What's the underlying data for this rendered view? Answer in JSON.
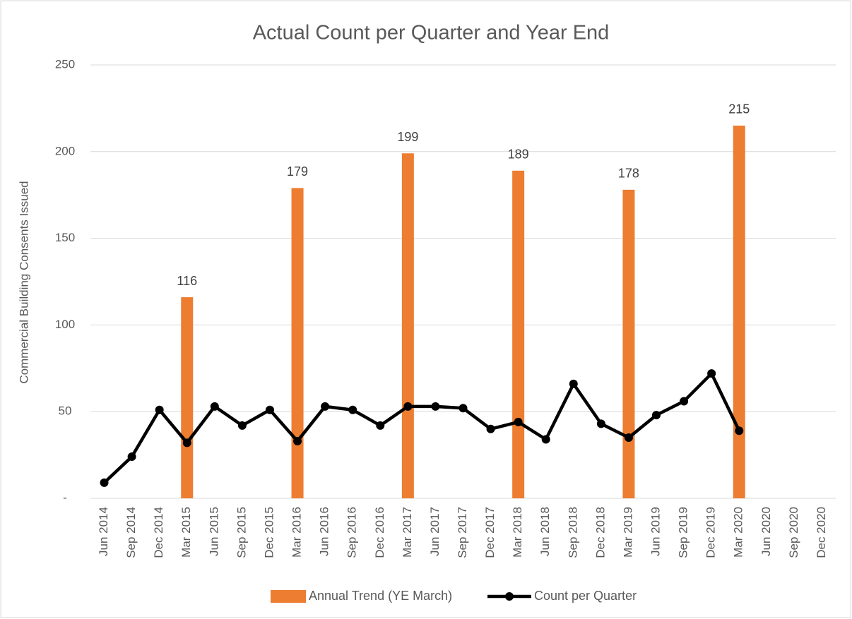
{
  "chart_data": {
    "type": "bar-line",
    "title": "Actual Count per Quarter and Year End",
    "y_label": "Commercial Building Consents Issued",
    "categories": [
      "Jun 2014",
      "Sep 2014",
      "Dec 2014",
      "Mar 2015",
      "Jun 2015",
      "Sep 2015",
      "Dec 2015",
      "Mar 2016",
      "Jun 2016",
      "Sep 2016",
      "Dec 2016",
      "Mar 2017",
      "Jun 2017",
      "Sep 2017",
      "Dec 2017",
      "Mar 2018",
      "Jun 2018",
      "Sep 2018",
      "Dec 2018",
      "Mar 2019",
      "Jun 2019",
      "Sep 2019",
      "Dec 2019",
      "Mar 2020",
      "Jun 2020",
      "Sep 2020",
      "Dec 2020"
    ],
    "series": [
      {
        "name": "Annual Trend (YE March)",
        "type": "bar",
        "color": "#ed7d31",
        "values": [
          null,
          null,
          null,
          116,
          null,
          null,
          null,
          179,
          null,
          null,
          null,
          199,
          null,
          null,
          null,
          189,
          null,
          null,
          null,
          178,
          null,
          null,
          null,
          215,
          null,
          null,
          null
        ]
      },
      {
        "name": "Count per Quarter",
        "type": "line",
        "color": "#000000",
        "values": [
          9,
          24,
          51,
          32,
          53,
          42,
          51,
          33,
          53,
          51,
          42,
          53,
          53,
          52,
          40,
          44,
          34,
          66,
          43,
          35,
          48,
          56,
          72,
          39,
          null,
          null,
          null
        ]
      }
    ],
    "ylim": [
      0,
      250
    ],
    "yticks": [
      {
        "value": 0,
        "label": "-"
      },
      50,
      100,
      150,
      200,
      250
    ],
    "grid": true,
    "legend": "bottom"
  }
}
